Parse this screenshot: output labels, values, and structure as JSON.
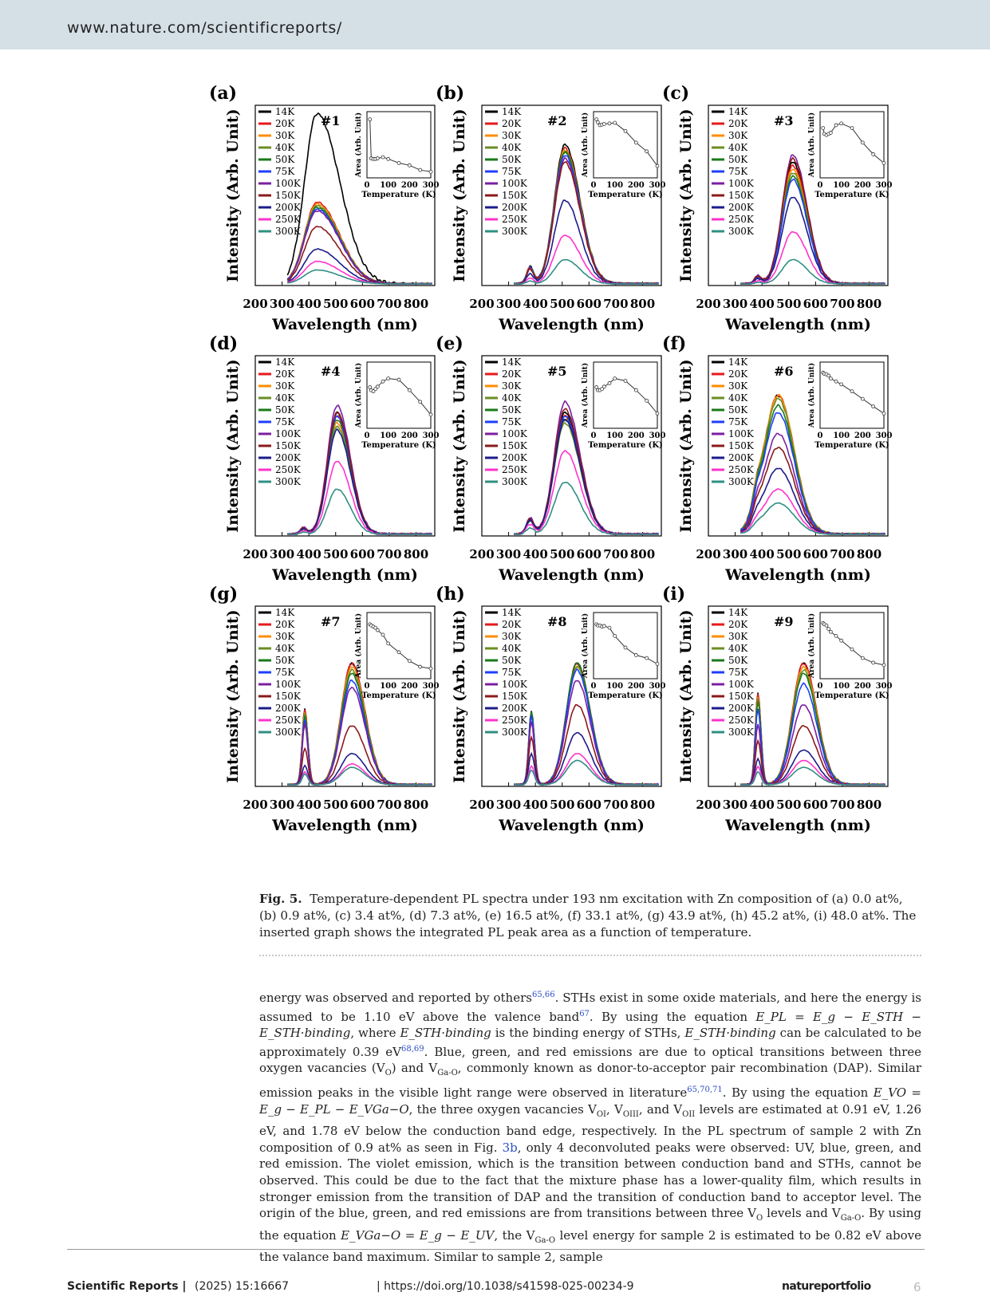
{
  "header": {
    "url": "www.nature.com/scientificreports/"
  },
  "legend_temps": [
    "14K",
    "20K",
    "30K",
    "40K",
    "50K",
    "75K",
    "100K",
    "150K",
    "200K",
    "250K",
    "300K"
  ],
  "legend_colors": [
    "#000000",
    "#e41a1c",
    "#ff8c00",
    "#6b8e23",
    "#1a7a1a",
    "#1f3fff",
    "#7b1fa2",
    "#8b1a1a",
    "#1c1c8c",
    "#ff33cc",
    "#2f8f83"
  ],
  "chart_data": [
    {
      "type": "line",
      "panel": "(a)",
      "sample": "#1",
      "xlabel": "Wavelength (nm)",
      "ylabel": "Intensity (Arb. Unit)",
      "xlim": [
        200,
        870
      ],
      "xticks": [
        200,
        300,
        400,
        500,
        600,
        700,
        800
      ],
      "peaks": [
        {
          "c": 430,
          "w": 65,
          "rw": 120
        }
      ],
      "temp_amps": [
        0.98,
        0.47,
        0.46,
        0.45,
        0.44,
        0.43,
        0.42,
        0.33,
        0.2,
        0.13,
        0.08
      ],
      "inset": {
        "xlabel": "Temperature (K)",
        "ylabel": "Area (Arb. Unit)",
        "xticks": [
          0,
          100,
          200,
          300
        ],
        "x": [
          14,
          20,
          30,
          40,
          50,
          75,
          100,
          150,
          200,
          250,
          300
        ],
        "y": [
          0.95,
          0.28,
          0.27,
          0.27,
          0.28,
          0.3,
          0.27,
          0.2,
          0.16,
          0.08,
          0.05
        ]
      }
    },
    {
      "type": "line",
      "panel": "(b)",
      "sample": "#2",
      "xlabel": "Wavelength (nm)",
      "ylabel": "Intensity (Arb. Unit)",
      "xlim": [
        200,
        870
      ],
      "xticks": [
        200,
        300,
        400,
        500,
        600,
        700,
        800
      ],
      "peaks": [
        {
          "c": 510,
          "w": 55,
          "rw": 80
        },
        {
          "c": 380,
          "w": 18,
          "rw": 18,
          "a": 0.12
        }
      ],
      "temp_amps": [
        0.8,
        0.78,
        0.77,
        0.76,
        0.76,
        0.74,
        0.72,
        0.7,
        0.48,
        0.28,
        0.14
      ],
      "inset": {
        "xlabel": "Temperature (K)",
        "ylabel": "Area (Arb. Unit)",
        "xticks": [
          0,
          100,
          200,
          300
        ],
        "x": [
          14,
          20,
          30,
          40,
          50,
          75,
          100,
          150,
          200,
          250,
          300
        ],
        "y": [
          0.95,
          0.9,
          0.85,
          0.86,
          0.87,
          0.88,
          0.89,
          0.75,
          0.55,
          0.4,
          0.15
        ]
      }
    },
    {
      "type": "line",
      "panel": "(c)",
      "sample": "#3",
      "xlabel": "Wavelength (nm)",
      "ylabel": "Intensity (Arb. Unit)",
      "xlim": [
        200,
        870
      ],
      "xticks": [
        200,
        300,
        400,
        500,
        600,
        700,
        800
      ],
      "peaks": [
        {
          "c": 515,
          "w": 55,
          "rw": 75
        },
        {
          "c": 385,
          "w": 18,
          "rw": 18,
          "a": 0.06
        }
      ],
      "temp_amps": [
        0.7,
        0.68,
        0.66,
        0.64,
        0.62,
        0.6,
        0.74,
        0.72,
        0.5,
        0.3,
        0.14
      ],
      "inset": {
        "xlabel": "Temperature (K)",
        "ylabel": "Area (Arb. Unit)",
        "xticks": [
          0,
          100,
          200,
          300
        ],
        "x": [
          14,
          20,
          30,
          40,
          50,
          75,
          100,
          150,
          200,
          250,
          300
        ],
        "y": [
          0.8,
          0.7,
          0.68,
          0.7,
          0.72,
          0.85,
          0.88,
          0.8,
          0.55,
          0.35,
          0.2
        ]
      }
    },
    {
      "type": "line",
      "panel": "(d)",
      "sample": "#4",
      "xlabel": "Wavelength (nm)",
      "ylabel": "Intensity (Arb. Unit)",
      "xlim": [
        200,
        870
      ],
      "xticks": [
        200,
        300,
        400,
        500,
        600,
        700,
        800
      ],
      "peaks": [
        {
          "c": 505,
          "w": 50,
          "rw": 70
        },
        {
          "c": 380,
          "w": 18,
          "rw": 18,
          "a": 0.05
        }
      ],
      "temp_amps": [
        0.7,
        0.68,
        0.64,
        0.62,
        0.66,
        0.68,
        0.74,
        0.7,
        0.6,
        0.42,
        0.26
      ],
      "inset": {
        "xlabel": "Temperature (K)",
        "ylabel": "Area (Arb. Unit)",
        "xticks": [
          0,
          100,
          200,
          300
        ],
        "x": [
          14,
          20,
          30,
          40,
          50,
          75,
          100,
          150,
          200,
          250,
          300
        ],
        "y": [
          0.65,
          0.6,
          0.58,
          0.62,
          0.66,
          0.75,
          0.8,
          0.78,
          0.6,
          0.4,
          0.18
        ]
      }
    },
    {
      "type": "line",
      "panel": "(e)",
      "sample": "#5",
      "xlabel": "Wavelength (nm)",
      "ylabel": "Intensity (Arb. Unit)",
      "xlim": [
        200,
        870
      ],
      "xticks": [
        200,
        300,
        400,
        500,
        600,
        700,
        800
      ],
      "peaks": [
        {
          "c": 510,
          "w": 55,
          "rw": 80
        },
        {
          "c": 380,
          "w": 20,
          "rw": 20,
          "a": 0.12
        }
      ],
      "temp_amps": [
        0.7,
        0.68,
        0.66,
        0.64,
        0.66,
        0.68,
        0.76,
        0.72,
        0.66,
        0.48,
        0.3
      ],
      "inset": {
        "xlabel": "Temperature (K)",
        "ylabel": "Area (Arb. Unit)",
        "xticks": [
          0,
          100,
          200,
          300
        ],
        "x": [
          14,
          20,
          30,
          40,
          50,
          75,
          100,
          150,
          200,
          250,
          300
        ],
        "y": [
          0.65,
          0.6,
          0.6,
          0.62,
          0.66,
          0.72,
          0.8,
          0.76,
          0.6,
          0.42,
          0.2
        ]
      }
    },
    {
      "type": "line",
      "panel": "(f)",
      "sample": "#6",
      "xlabel": "Wavelength (nm)",
      "ylabel": "Intensity (Arb. Unit)",
      "xlim": [
        200,
        870
      ],
      "xticks": [
        200,
        300,
        400,
        500,
        600,
        700,
        800
      ],
      "peaks": [
        {
          "c": 460,
          "w": 75,
          "rw": 85
        },
        {
          "c": 380,
          "w": 22,
          "rw": 22,
          "a": 0.1
        }
      ],
      "temp_amps": [
        0.8,
        0.8,
        0.8,
        0.78,
        0.74,
        0.7,
        0.58,
        0.5,
        0.38,
        0.26,
        0.18
      ],
      "inset": {
        "xlabel": "Temperature (K)",
        "ylabel": "Area (Arb. Unit)",
        "xticks": [
          0,
          100,
          200,
          300
        ],
        "x": [
          14,
          20,
          30,
          40,
          50,
          75,
          100,
          150,
          200,
          250,
          300
        ],
        "y": [
          0.9,
          0.88,
          0.87,
          0.85,
          0.8,
          0.75,
          0.7,
          0.58,
          0.45,
          0.32,
          0.2
        ]
      }
    },
    {
      "type": "line",
      "panel": "(g)",
      "sample": "#7",
      "xlabel": "Wavelength (nm)",
      "ylabel": "Intensity (Arb. Unit)",
      "xlim": [
        200,
        870
      ],
      "xticks": [
        200,
        300,
        400,
        500,
        600,
        700,
        800
      ],
      "peaks": [
        {
          "c": 560,
          "w": 55,
          "rw": 70
        },
        {
          "c": 385,
          "w": 14,
          "rw": 16,
          "a": 0.62
        }
      ],
      "temp_amps": [
        0.7,
        0.7,
        0.68,
        0.66,
        0.64,
        0.6,
        0.56,
        0.34,
        0.18,
        0.12,
        0.1
      ],
      "inset": {
        "xlabel": "Temperature (K)",
        "ylabel": "Area (Arb. Unit)",
        "xticks": [
          0,
          100,
          200,
          300
        ],
        "x": [
          14,
          20,
          30,
          40,
          50,
          75,
          100,
          150,
          200,
          250,
          300
        ],
        "y": [
          0.88,
          0.86,
          0.84,
          0.82,
          0.78,
          0.7,
          0.55,
          0.4,
          0.25,
          0.15,
          0.12
        ]
      }
    },
    {
      "type": "line",
      "panel": "(h)",
      "sample": "#8",
      "xlabel": "Wavelength (nm)",
      "ylabel": "Intensity (Arb. Unit)",
      "xlim": [
        200,
        870
      ],
      "xticks": [
        200,
        300,
        400,
        500,
        600,
        700,
        800
      ],
      "peaks": [
        {
          "c": 555,
          "w": 55,
          "rw": 70
        },
        {
          "c": 385,
          "w": 14,
          "rw": 16,
          "a": 0.6
        }
      ],
      "temp_amps": [
        0.7,
        0.7,
        0.68,
        0.68,
        0.7,
        0.66,
        0.6,
        0.46,
        0.3,
        0.18,
        0.14
      ],
      "inset": {
        "xlabel": "Temperature (K)",
        "ylabel": "Area (Arb. Unit)",
        "xticks": [
          0,
          100,
          200,
          300
        ],
        "x": [
          14,
          20,
          30,
          40,
          50,
          75,
          100,
          150,
          200,
          250,
          300
        ],
        "y": [
          0.88,
          0.86,
          0.86,
          0.84,
          0.85,
          0.82,
          0.68,
          0.48,
          0.35,
          0.3,
          0.2
        ]
      }
    },
    {
      "type": "line",
      "panel": "(i)",
      "sample": "#9",
      "xlabel": "Wavelength (nm)",
      "ylabel": "Intensity (Arb. Unit)",
      "xlim": [
        200,
        870
      ],
      "xticks": [
        200,
        300,
        400,
        500,
        600,
        700,
        800
      ],
      "peaks": [
        {
          "c": 555,
          "w": 58,
          "rw": 70
        },
        {
          "c": 385,
          "w": 14,
          "rw": 16,
          "a": 0.75
        }
      ],
      "temp_amps": [
        0.7,
        0.7,
        0.68,
        0.66,
        0.64,
        0.58,
        0.46,
        0.34,
        0.2,
        0.14,
        0.1
      ],
      "inset": {
        "xlabel": "Temperature (K)",
        "ylabel": "Area (Arb. Unit)",
        "xticks": [
          0,
          100,
          200,
          300
        ],
        "x": [
          14,
          20,
          30,
          40,
          50,
          75,
          100,
          150,
          200,
          250,
          300
        ],
        "y": [
          0.9,
          0.88,
          0.86,
          0.8,
          0.75,
          0.68,
          0.6,
          0.45,
          0.3,
          0.22,
          0.18
        ]
      }
    }
  ],
  "caption": {
    "label": "Fig. 5",
    "text": "Temperature-dependent PL spectra under 193 nm excitation with Zn composition of (a) 0.0 at%, (b) 0.9 at%, (c) 3.4 at%, (d) 7.3 at%, (e) 16.5 at%, (f) 33.1 at%, (g) 43.9 at%, (h) 45.2 at%, (i) 48.0 at%. The inserted graph shows the integrated PL peak area as a function of temperature."
  },
  "body": {
    "s1": "energy was observed and reported by others",
    "r1": "65,66",
    "s2": ". STHs exist in some oxide materials, and here the energy is assumed to be 1.10 eV above the valence band",
    "r2": "67",
    "s3": ". By using the equation ",
    "eq1": "E_PL = E_g − E_STH − E_STH·binding",
    "s4": ", where ",
    "eq2": "E_STH·binding",
    "s5": " is the binding energy of STHs, ",
    "eq3": "E_STH·binding",
    "s6": " can be calculated to be approximately 0.39 eV",
    "r3": "68,69",
    "s7": ". Blue, green, and red emissions are due to optical transitions between three oxygen vacancies (V",
    "sub_o": "O",
    "s8": ") and V",
    "sub_gao": "Ga-O",
    "s9": ", commonly known as donor-to-acceptor pair recombination (DAP). Similar emission peaks in the visible light range were observed in literature",
    "r4": "65,70,71",
    "s10": ". By using the equation ",
    "eq4": "E_VO = E_g − E_PL − E_VGa−O",
    "s11": ", the three oxygen vacancies V",
    "sub_oi": "OI",
    "s12": ", V",
    "sub_oiii": "OIII",
    "s13": ", and V",
    "sub_oii": "OII",
    "s14": " levels are estimated at 0.91 eV, 1.26 eV, and 1.78 eV below the conduction band edge, respectively. In the PL spectrum of sample 2 with Zn composition of 0.9 at% as seen in Fig. ",
    "fig_ref": "3b",
    "s15": ", only 4 deconvoluted peaks were observed: UV, blue, green, and red emission. The violet emission, which is the transition between conduction band and STHs, cannot be observed. This could be due to the fact that the mixture phase has a lower-quality film, which results in stronger emission from the transition of DAP and the transition of conduction band to acceptor level. The origin of the blue, green, and red emissions are from transitions between three V",
    "sub_o2": "O",
    "s16": " levels and V",
    "sub_gao2": "Ga-O",
    "s17": ". By using the equation ",
    "eq5": "E_VGa−O = E_g − E_UV",
    "s18": ", the V",
    "sub_gao3": "Ga-O",
    "s19": " level energy for sample 2 is estimated to be 0.82 eV above the valance band maximum. Similar to sample 2, sample"
  },
  "footer": {
    "journal": "Scientific Reports |",
    "year": "(2025) 15:16667",
    "doi": "| https://doi.org/10.1038/s41598-025-00234-9",
    "brand": "natureportfolio",
    "page": "6"
  }
}
